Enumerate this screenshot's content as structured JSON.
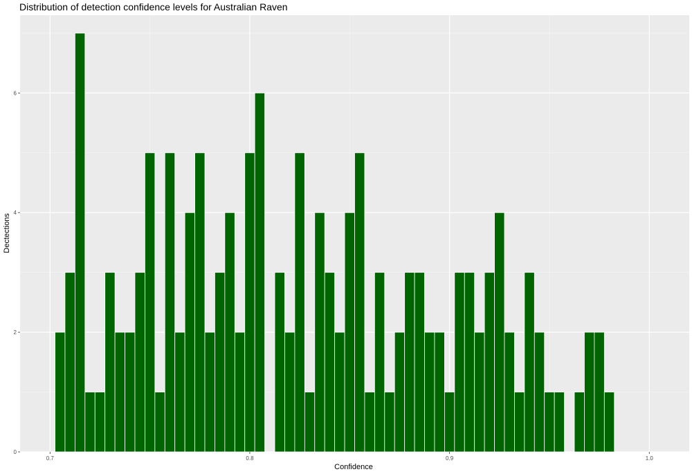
{
  "chart_data": {
    "type": "bar",
    "title": "Distribution of detection confidence levels for Australian Raven",
    "xlabel": "Confidence",
    "ylabel": "Dectections",
    "xlim": [
      0.685,
      1.02
    ],
    "ylim": [
      0,
      7.3
    ],
    "x_ticks": [
      "0.7",
      "0.8",
      "0.9",
      "1.0"
    ],
    "x_tick_values": [
      0.7,
      0.8,
      0.9,
      1.0
    ],
    "y_ticks": [
      "0",
      "2",
      "4",
      "6"
    ],
    "y_tick_values": [
      0,
      2,
      4,
      6
    ],
    "bin_width": 0.005,
    "bin_start": 0.7025,
    "values": [
      2,
      3,
      7,
      1,
      1,
      3,
      2,
      2,
      3,
      5,
      1,
      5,
      2,
      4,
      5,
      2,
      3,
      4,
      2,
      5,
      6,
      0,
      3,
      2,
      5,
      1,
      4,
      3,
      2,
      4,
      5,
      1,
      3,
      1,
      2,
      3,
      3,
      2,
      2,
      1,
      3,
      3,
      2,
      3,
      4,
      2,
      1,
      3,
      2,
      1,
      1,
      0,
      1,
      2,
      2,
      1
    ],
    "bar_color": "#006400",
    "panel_background": "#ebebeb",
    "grid": true
  }
}
